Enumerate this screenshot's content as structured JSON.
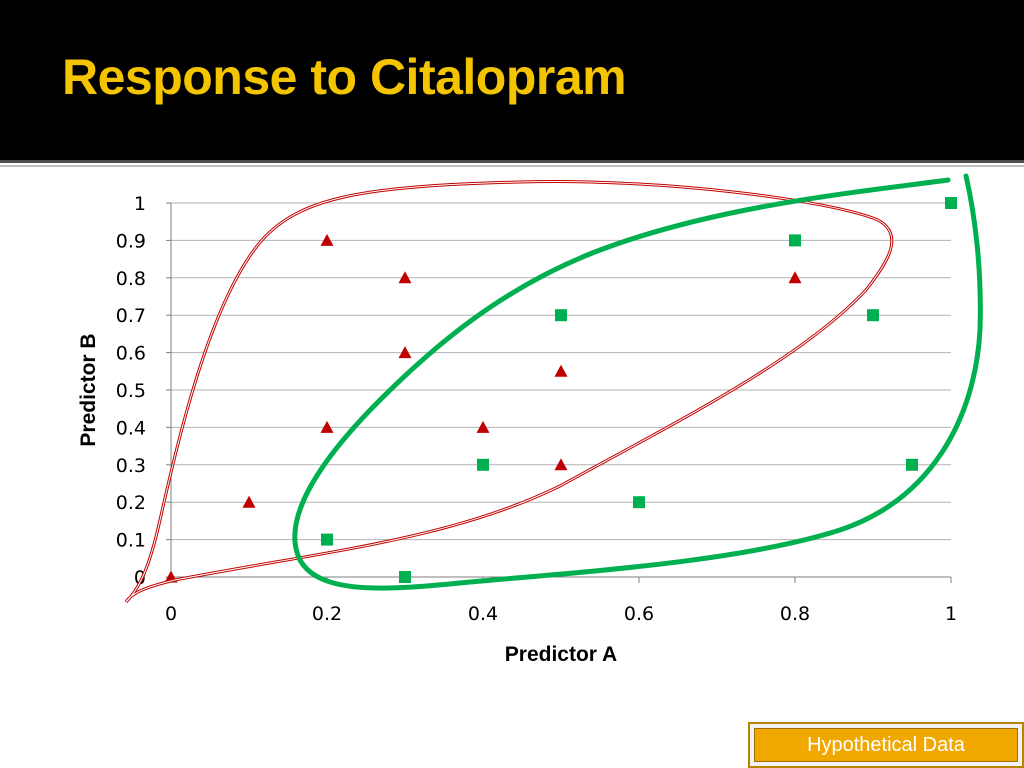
{
  "slide": {
    "title": "Response to Citalopram",
    "title_color": "#f5c400",
    "badge_label": "Hypothetical Data",
    "badge_color": "#f0a800"
  },
  "chart_data": {
    "type": "scatter",
    "title": "",
    "xlabel": "Predictor A",
    "ylabel": "Predictor B",
    "xlim": [
      0,
      1
    ],
    "ylim": [
      0,
      1
    ],
    "x_ticks": [
      0,
      0.2,
      0.4,
      0.6,
      0.8,
      1
    ],
    "y_ticks": [
      0,
      0.1,
      0.2,
      0.3,
      0.4,
      0.5,
      0.6,
      0.7,
      0.8,
      0.9,
      1
    ],
    "grid": "horizontal",
    "legend": "none",
    "series": [
      {
        "marker": "triangle",
        "color": "#c00000",
        "points": [
          [
            0,
            0
          ],
          [
            0.1,
            0.2
          ],
          [
            0.2,
            0.4
          ],
          [
            0.2,
            0.9
          ],
          [
            0.3,
            0.6
          ],
          [
            0.3,
            0.8
          ],
          [
            0.4,
            0.4
          ],
          [
            0.5,
            0.3
          ],
          [
            0.5,
            0.55
          ],
          [
            0.8,
            0.8
          ]
        ]
      },
      {
        "marker": "square",
        "color": "#00b050",
        "points": [
          [
            0.2,
            0.1
          ],
          [
            0.3,
            0
          ],
          [
            0.4,
            0.3
          ],
          [
            0.5,
            0.7
          ],
          [
            0.6,
            0.2
          ],
          [
            0.8,
            0.9
          ],
          [
            0.9,
            0.7
          ],
          [
            0.95,
            0.3
          ],
          [
            1,
            1
          ]
        ]
      }
    ],
    "annotations": [
      {
        "shape": "freehand-loop",
        "color": "#c00000",
        "encloses": "triangle series"
      },
      {
        "shape": "freehand-loop",
        "color": "#00b050",
        "encloses": "square series"
      }
    ]
  }
}
